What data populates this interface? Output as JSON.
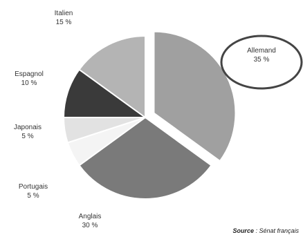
{
  "chart_data": {
    "type": "pie",
    "slices": [
      {
        "label": "Allemand",
        "value": 35,
        "value_text": "35 %",
        "color": "#a0a0a0",
        "exploded": true
      },
      {
        "label": "Anglais",
        "value": 30,
        "value_text": "30 %",
        "color": "#7a7a7a",
        "exploded": false
      },
      {
        "label": "Portugais",
        "value": 5,
        "value_text": "5 %",
        "color": "#f4f4f4",
        "exploded": false
      },
      {
        "label": "Japonais",
        "value": 5,
        "value_text": "5 %",
        "color": "#e2e2e2",
        "exploded": false
      },
      {
        "label": "Espagnol",
        "value": 10,
        "value_text": "10 %",
        "color": "#3a3a3a",
        "exploded": false
      },
      {
        "label": "Italien",
        "value": 15,
        "value_text": "15 %",
        "color": "#b4b4b4",
        "exploded": false
      }
    ],
    "highlight": {
      "label": "Allemand",
      "shape": "ellipse",
      "color": "#444444"
    }
  },
  "source": {
    "prefix": "Source",
    "text": " : Sénat français"
  }
}
